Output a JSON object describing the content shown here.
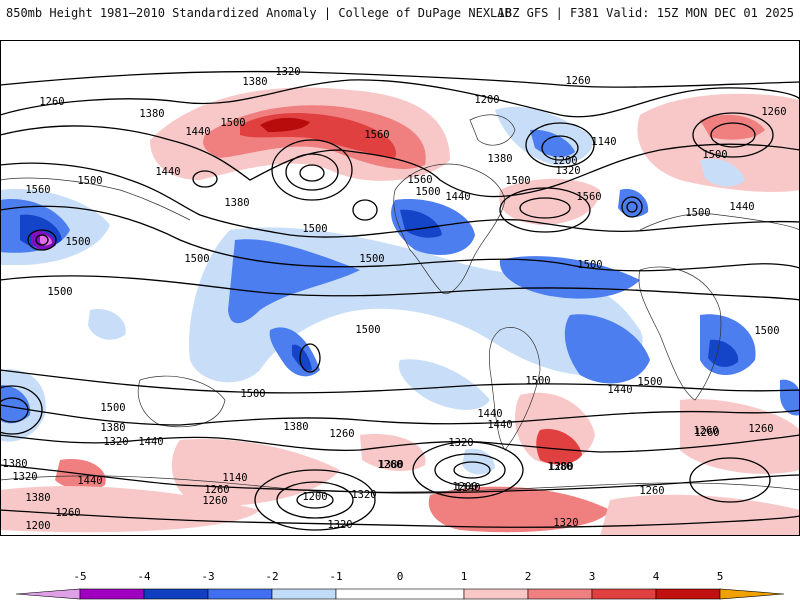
{
  "header": {
    "title_left": "850mb Height 1981–2010 Standardized Anomaly | College of DuPage NEXLAB",
    "title_right": "18Z GFS | F381 Valid: 15Z MON DEC 01 2025"
  },
  "map": {
    "contour_labels": [
      {
        "id": "c-1320-a",
        "text": "1320"
      },
      {
        "id": "c-1380-a",
        "text": "1380"
      },
      {
        "id": "c-1260-a",
        "text": "1260"
      },
      {
        "id": "c-1380-b",
        "text": "1380"
      },
      {
        "id": "c-1440-a",
        "text": "1440"
      },
      {
        "id": "c-1500-a",
        "text": "1500"
      },
      {
        "id": "c-1560-a",
        "text": "1560"
      },
      {
        "id": "c-1200-a",
        "text": "1200"
      },
      {
        "id": "c-1260-b",
        "text": "1260"
      },
      {
        "id": "c-1140-a",
        "text": "1140"
      },
      {
        "id": "c-1200-b",
        "text": "1200"
      },
      {
        "id": "c-1320-b",
        "text": "1320"
      },
      {
        "id": "c-1380-c",
        "text": "1380"
      },
      {
        "id": "c-1560-b",
        "text": "1560"
      },
      {
        "id": "c-1500-b",
        "text": "1500"
      },
      {
        "id": "c-1440-b",
        "text": "1440"
      },
      {
        "id": "c-1500-c",
        "text": "1500"
      },
      {
        "id": "c-1560-c",
        "text": "1560"
      },
      {
        "id": "c-1500-d",
        "text": "1500"
      },
      {
        "id": "c-1440-c",
        "text": "1440"
      },
      {
        "id": "c-1260-c",
        "text": "1260"
      },
      {
        "id": "c-1500-e",
        "text": "1500"
      },
      {
        "id": "c-1560-d",
        "text": "1560"
      },
      {
        "id": "c-1440-d",
        "text": "1440"
      },
      {
        "id": "c-1380-d",
        "text": "1380"
      },
      {
        "id": "c-1500-f",
        "text": "1500"
      },
      {
        "id": "c-1500-g",
        "text": "1500"
      },
      {
        "id": "c-1500-h",
        "text": "1500"
      },
      {
        "id": "c-1500-i",
        "text": "1500"
      },
      {
        "id": "c-1500-j",
        "text": "1500"
      },
      {
        "id": "c-1500-k",
        "text": "1500"
      },
      {
        "id": "c-1500-l",
        "text": "1500"
      },
      {
        "id": "c-1500-m",
        "text": "1500"
      },
      {
        "id": "c-1500-n",
        "text": "1500"
      },
      {
        "id": "c-1440-e",
        "text": "1440"
      },
      {
        "id": "c-1500-o",
        "text": "1500"
      },
      {
        "id": "c-1500-p",
        "text": "1500"
      },
      {
        "id": "c-1500-q",
        "text": "1500"
      },
      {
        "id": "c-1500-r",
        "text": "1500"
      },
      {
        "id": "c-1440-f",
        "text": "1440"
      },
      {
        "id": "c-1380-e",
        "text": "1380"
      },
      {
        "id": "c-1320-c",
        "text": "1320"
      },
      {
        "id": "c-1440-g",
        "text": "1440"
      },
      {
        "id": "c-1380-f",
        "text": "1380"
      },
      {
        "id": "c-1260-d",
        "text": "1260"
      },
      {
        "id": "c-1320-d",
        "text": "1320"
      },
      {
        "id": "c-1380-g",
        "text": "1380"
      },
      {
        "id": "c-1200-c",
        "text": "1200"
      },
      {
        "id": "c-1260-e",
        "text": "1260"
      },
      {
        "id": "c-1140-b",
        "text": "1140"
      },
      {
        "id": "c-1260-f",
        "text": "1260"
      },
      {
        "id": "c-1380-h",
        "text": "1380"
      },
      {
        "id": "c-1320-e",
        "text": "1320"
      },
      {
        "id": "c-1440-h",
        "text": "1440"
      },
      {
        "id": "c-1380-i",
        "text": "1380"
      },
      {
        "id": "c-1260-g",
        "text": "1260"
      },
      {
        "id": "c-1200-d",
        "text": "1200"
      },
      {
        "id": "c-1140-c",
        "text": "1140"
      },
      {
        "id": "c-1260-h",
        "text": "1260"
      },
      {
        "id": "c-1200-e",
        "text": "1200"
      },
      {
        "id": "c-1320-f",
        "text": "1320"
      },
      {
        "id": "c-1260-i",
        "text": "1260"
      },
      {
        "id": "c-1320-g",
        "text": "1320"
      },
      {
        "id": "c-1260-j",
        "text": "1260"
      },
      {
        "id": "c-1200-f",
        "text": "1200"
      },
      {
        "id": "c-1260-k",
        "text": "1260"
      },
      {
        "id": "c-1380-j",
        "text": "1380"
      },
      {
        "id": "c-1320-h",
        "text": "1320"
      },
      {
        "id": "c-1440-i",
        "text": "1440"
      },
      {
        "id": "c-1260-l",
        "text": "1260"
      }
    ]
  },
  "legend": {
    "ticks": [
      "-5",
      "-4",
      "-3",
      "-2",
      "-1",
      "0",
      "1",
      "2",
      "3",
      "4",
      "5"
    ],
    "colors": {
      "m5": "#e0a0e8",
      "m4": "#a000c0",
      "m3": "#1040c0",
      "m2": "#4070f0",
      "m1": "#c0dcf8",
      "zero": "#ffffff",
      "p1": "#f8c8c8",
      "p2": "#f08080",
      "p3": "#e04040",
      "p4": "#c01010",
      "p5": "#f0a000"
    }
  },
  "anomaly_colors": {
    "pos1": "#f8c8c8",
    "pos2": "#f08080",
    "pos3": "#e04040",
    "pos4": "#b80c0c",
    "neg1": "#c8def8",
    "neg2": "#4c7ef0",
    "neg3": "#1444c8",
    "neg4": "#8010c0",
    "neg5": "#e070e8"
  }
}
